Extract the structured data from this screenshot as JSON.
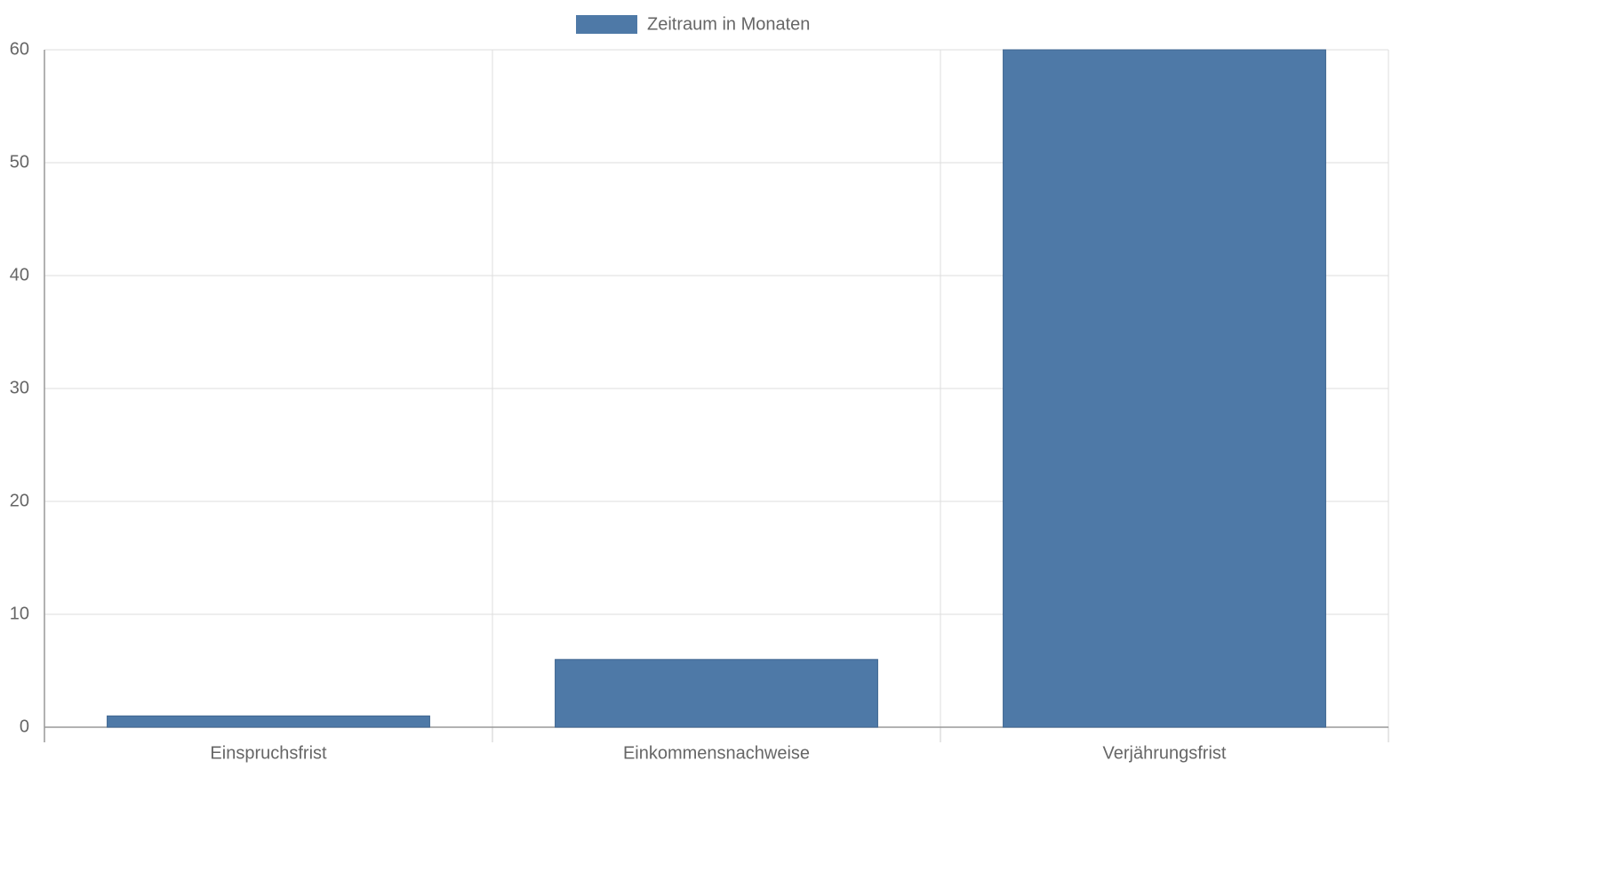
{
  "chart_data": {
    "type": "bar",
    "categories": [
      "Einspruchsfrist",
      "Einkommensnachweise",
      "Verjährungsfrist"
    ],
    "series": [
      {
        "name": "Zeitraum in Monaten",
        "color": "#4e79a7",
        "values": [
          1,
          6,
          60
        ]
      }
    ],
    "ylim": [
      0,
      60
    ],
    "yticks": [
      0,
      10,
      20,
      30,
      40,
      50,
      60
    ],
    "grid": true,
    "legend": "top"
  }
}
